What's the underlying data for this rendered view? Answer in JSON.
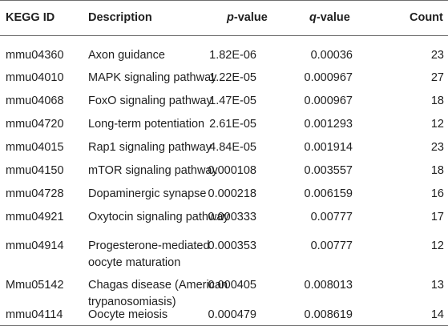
{
  "header": {
    "kegg_id": "KEGG ID",
    "description": "Description",
    "p_prefix": "p",
    "p_suffix": "-value",
    "q_prefix": "q",
    "q_suffix": "-value",
    "count": "Count"
  },
  "rows": [
    {
      "id": "mmu04360",
      "desc1": "Axon guidance",
      "desc2": "",
      "p": "1.82E-06",
      "q": "0.00036",
      "count": "23"
    },
    {
      "id": "mmu04010",
      "desc1": "MAPK signaling pathway",
      "desc2": "",
      "p": "1.22E-05",
      "q": "0.000967",
      "count": "27"
    },
    {
      "id": "mmu04068",
      "desc1": "FoxO signaling pathway",
      "desc2": "",
      "p": "1.47E-05",
      "q": "0.000967",
      "count": "18"
    },
    {
      "id": "mmu04720",
      "desc1": "Long-term potentiation",
      "desc2": "",
      "p": "2.61E-05",
      "q": "0.001293",
      "count": "12"
    },
    {
      "id": "mmu04015",
      "desc1": "Rap1 signaling pathway",
      "desc2": "",
      "p": "4.84E-05",
      "q": "0.001914",
      "count": "23"
    },
    {
      "id": "mmu04150",
      "desc1": "mTOR signaling pathway",
      "desc2": "",
      "p": "0.000108",
      "q": "0.003557",
      "count": "18"
    },
    {
      "id": "mmu04728",
      "desc1": "Dopaminergic synapse",
      "desc2": "",
      "p": "0.000218",
      "q": "0.006159",
      "count": "16"
    },
    {
      "id": "mmu04921",
      "desc1": "Oxytocin signaling pathway",
      "desc2": "",
      "p": "0.000333",
      "q": "0.00777",
      "count": "17"
    },
    {
      "id": "mmu04914",
      "desc1": "Progesterone-mediated",
      "desc2": "oocyte maturation",
      "p": "0.000353",
      "q": "0.00777",
      "count": "12"
    },
    {
      "id": "Mmu05142",
      "desc1": "Chagas disease (American",
      "desc2": "trypanosomiasis)",
      "p": "0.000405",
      "q": "0.008013",
      "count": "13"
    },
    {
      "id": "mmu04114",
      "desc1": "Oocyte meiosis",
      "desc2": "",
      "p": "0.000479",
      "q": "0.008619",
      "count": "14"
    }
  ]
}
